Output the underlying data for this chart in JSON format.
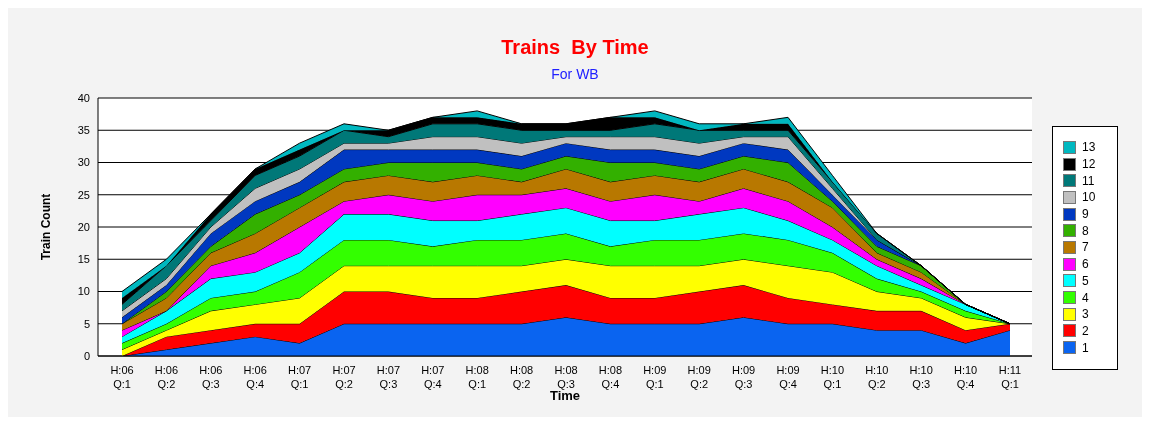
{
  "chart_data": {
    "type": "area",
    "title": "Trains  By Time",
    "subtitle": "For WB",
    "xlabel": "Time",
    "ylabel": "Train Count",
    "categories": [
      "H:06 Q:1",
      "H:06 Q:2",
      "H:06 Q:3",
      "H:06 Q:4",
      "H:07 Q:1",
      "H:07 Q:2",
      "H:07 Q:3",
      "H:07 Q:4",
      "H:08 Q:1",
      "H:08 Q:2",
      "H:08 Q:3",
      "H:08 Q:4",
      "H:09 Q:1",
      "H:09 Q:2",
      "H:09 Q:3",
      "H:09 Q:4",
      "H:10 Q:1",
      "H:10 Q:2",
      "H:10 Q:3",
      "H:10 Q:4",
      "H:11 Q:1"
    ],
    "stacked": true,
    "ylim": [
      0,
      40
    ],
    "yticks": [
      0,
      5,
      10,
      15,
      20,
      25,
      30,
      35,
      40
    ],
    "grid": "y",
    "legend": "right",
    "series": [
      {
        "name": "1",
        "color": "#0a64f0",
        "values": [
          0,
          1,
          2,
          3,
          2,
          5,
          5,
          5,
          5,
          5,
          6,
          5,
          5,
          5,
          6,
          5,
          5,
          4,
          4,
          2,
          4
        ]
      },
      {
        "name": "2",
        "color": "#ff0000",
        "values": [
          0,
          2,
          2,
          2,
          3,
          5,
          5,
          4,
          4,
          5,
          5,
          4,
          4,
          5,
          5,
          4,
          3,
          3,
          3,
          2,
          1
        ]
      },
      {
        "name": "3",
        "color": "#ffff00",
        "values": [
          1,
          1,
          3,
          3,
          4,
          4,
          4,
          5,
          5,
          4,
          4,
          5,
          5,
          4,
          4,
          5,
          5,
          3,
          2,
          2,
          0
        ]
      },
      {
        "name": "4",
        "color": "#33ff00",
        "values": [
          1,
          1,
          2,
          2,
          4,
          4,
          4,
          3,
          4,
          4,
          4,
          3,
          4,
          4,
          4,
          4,
          3,
          2,
          1,
          1,
          0
        ]
      },
      {
        "name": "5",
        "color": "#00ffff",
        "values": [
          1,
          2,
          3,
          3,
          3,
          4,
          4,
          4,
          3,
          4,
          4,
          4,
          3,
          4,
          4,
          3,
          2,
          2,
          1,
          1,
          0
        ]
      },
      {
        "name": "6",
        "color": "#ff00ff",
        "values": [
          1,
          0,
          2,
          3,
          4,
          2,
          3,
          3,
          4,
          3,
          3,
          3,
          4,
          2,
          3,
          3,
          2,
          1,
          1,
          0,
          0
        ]
      },
      {
        "name": "7",
        "color": "#b87800",
        "values": [
          1,
          2,
          2,
          3,
          3,
          3,
          3,
          3,
          3,
          2,
          3,
          3,
          3,
          3,
          3,
          3,
          3,
          1,
          1,
          0,
          0
        ]
      },
      {
        "name": "8",
        "color": "#33b000",
        "values": [
          0,
          1,
          1,
          3,
          2,
          2,
          2,
          3,
          2,
          2,
          2,
          3,
          2,
          2,
          2,
          3,
          1,
          1,
          1,
          0,
          0
        ]
      },
      {
        "name": "9",
        "color": "#0038c0",
        "values": [
          1,
          1,
          2,
          2,
          2,
          3,
          2,
          2,
          2,
          2,
          2,
          2,
          2,
          2,
          2,
          2,
          1,
          1,
          0,
          0,
          0
        ]
      },
      {
        "name": "10",
        "color": "#c0c0c0",
        "values": [
          1,
          1,
          1,
          2,
          2,
          1,
          1,
          2,
          2,
          2,
          1,
          2,
          2,
          2,
          1,
          2,
          1,
          0,
          0,
          0,
          0
        ]
      },
      {
        "name": "11",
        "color": "#007878",
        "values": [
          1,
          2,
          1,
          2,
          2,
          2,
          1,
          2,
          2,
          2,
          1,
          1,
          2,
          2,
          1,
          1,
          1,
          1,
          0,
          0,
          0
        ]
      },
      {
        "name": "12",
        "color": "#000000",
        "values": [
          1,
          0,
          1,
          1,
          1,
          0,
          1,
          1,
          1,
          1,
          1,
          2,
          1,
          0,
          1,
          1,
          0,
          0,
          0,
          0,
          0
        ]
      },
      {
        "name": "13",
        "color": "#00b8c0",
        "values": [
          1,
          1,
          0,
          0,
          1,
          1,
          0,
          0,
          1,
          0,
          0,
          0,
          1,
          1,
          0,
          1,
          1,
          0,
          0,
          0,
          0
        ]
      }
    ]
  }
}
